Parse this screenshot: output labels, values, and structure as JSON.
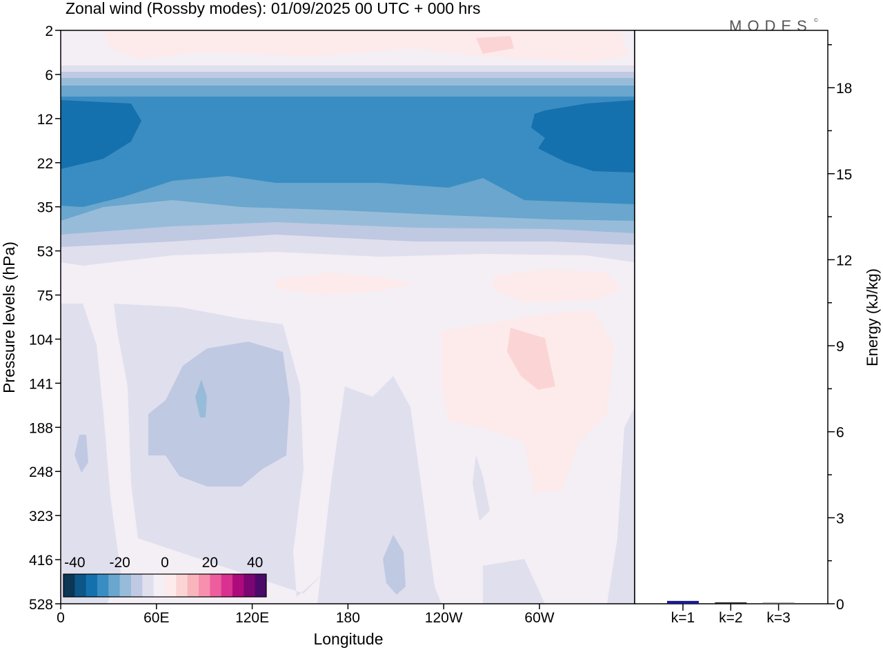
{
  "chart_data": [
    {
      "type": "heatmap",
      "title": "Zonal wind (Rossby modes):  01/09/2025  00 UTC  + 000 hrs",
      "xlabel": "Longitude",
      "ylabel": "Pressure levels (hPa)",
      "x_ticks": [
        "0",
        "60E",
        "120E",
        "180",
        "120W",
        "60W"
      ],
      "y_ticks": [
        "2",
        "6",
        "12",
        "22",
        "35",
        "53",
        "75",
        "104",
        "141",
        "188",
        "248",
        "323",
        "416",
        "528"
      ],
      "colorbar": {
        "ticks": [
          "-40",
          "-20",
          "0",
          "20",
          "40"
        ],
        "range": [
          -45,
          45
        ],
        "step": 5,
        "colors": [
          "#0b3654",
          "#0c5688",
          "#1570ae",
          "#3a8dc2",
          "#6aa6cd",
          "#97bcd9",
          "#c0c9e2",
          "#e0dfee",
          "#f4eef5",
          "#fdebeb",
          "#fbd5d5",
          "#f8b5bc",
          "#f690ae",
          "#ee5d9e",
          "#d9318f",
          "#ad0a7b",
          "#7c0574",
          "#4b0a6a"
        ]
      }
    },
    {
      "type": "bar",
      "ylabel": "Energy (kJ/kg)",
      "categories": [
        "k=1",
        "k=2",
        "k=3"
      ],
      "values": [
        0.1,
        0.05,
        0.02
      ],
      "bar_colors": [
        "#1a1a8c",
        "#222222",
        "#555555"
      ],
      "y_ticks": [
        "0",
        "3",
        "6",
        "9",
        "12",
        "15",
        "18"
      ],
      "ylim": [
        0,
        20
      ]
    }
  ],
  "logo": "MODES",
  "logo_mark": "©"
}
